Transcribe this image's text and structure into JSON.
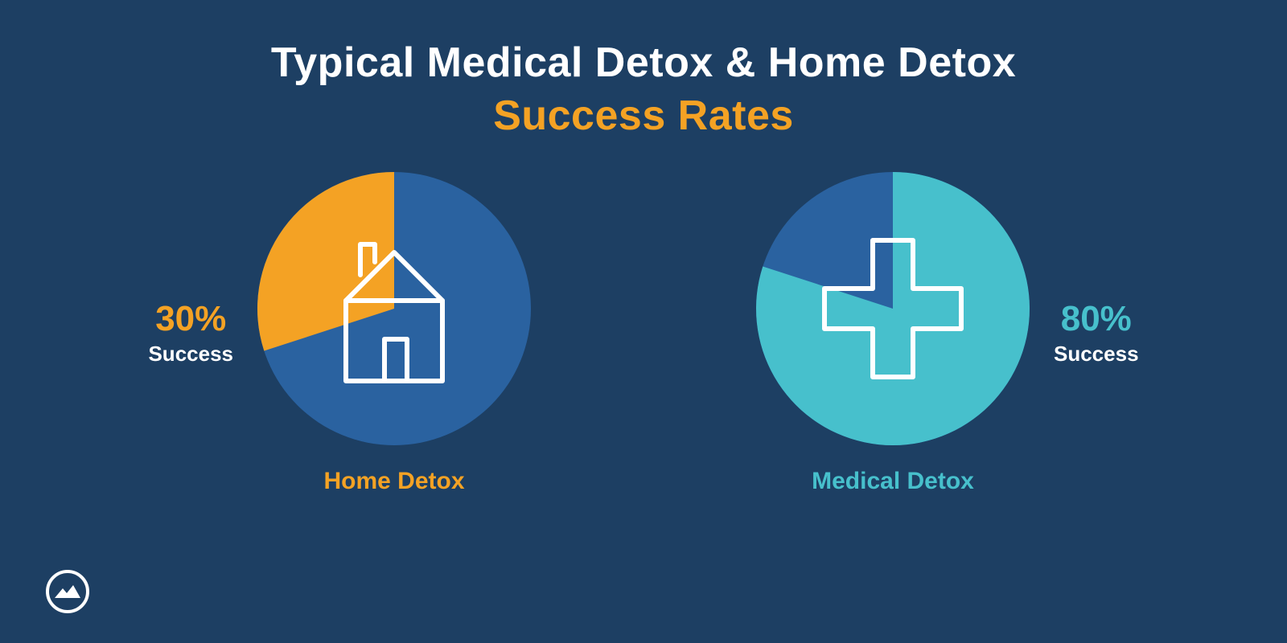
{
  "background_color": "#1d3f63",
  "title": {
    "line1": "Typical Medical Detox & Home Detox",
    "line2": "Success Rates",
    "line1_color": "#ffffff",
    "line2_color": "#f4a224",
    "font_size": 52,
    "font_weight": 800
  },
  "charts": {
    "home": {
      "type": "pie",
      "percent": 30,
      "percent_text": "30%",
      "percent_label": "Success",
      "slice_color": "#f4a224",
      "remainder_color": "#2a62a0",
      "start_angle_deg": 0,
      "direction": "ccw",
      "caption": "Home Detox",
      "caption_color": "#f4a224",
      "icon": "house",
      "icon_stroke": "#ffffff",
      "icon_stroke_width": 6,
      "radius": 170,
      "diameter": 340,
      "label_side": "left"
    },
    "medical": {
      "type": "pie",
      "percent": 80,
      "percent_text": "80%",
      "percent_label": "Success",
      "slice_color": "#47c0cc",
      "remainder_color": "#2a62a0",
      "start_angle_deg": 0,
      "direction": "cw",
      "caption": "Medical Detox",
      "caption_color": "#47c0cc",
      "icon": "medical-cross",
      "icon_stroke": "#ffffff",
      "icon_stroke_width": 6,
      "radius": 170,
      "diameter": 340,
      "label_side": "right"
    }
  },
  "caption_font_size": 30,
  "pct_value_font_size": 44,
  "pct_sub_font_size": 26,
  "pct_sub_color": "#ffffff",
  "logo": {
    "ring_color": "#ffffff",
    "fill_color": "#ffffff",
    "bg_color": "#1d3f63"
  }
}
